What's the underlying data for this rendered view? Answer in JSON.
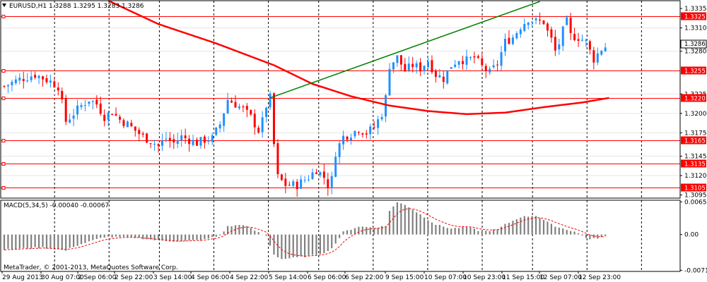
{
  "header": {
    "symbol_info": "EURUSD,H1  1.3288  1.3295  1.3283  1.3286",
    "macd_info": "MACD(5,34,5) -0.00040 -0.00067",
    "copyright": "MetaTrader, © 2001-2013, MetaQuotes Software Corp."
  },
  "colors": {
    "bull": "#1e90ff",
    "bear": "#ff0000",
    "ma": "#ff0000",
    "trendline": "#008000",
    "level": "#ff0000",
    "grid": "#000000",
    "hist": "#808080",
    "signal": "#ff0000"
  },
  "chart_data": [
    {
      "type": "candlestick",
      "title": "EURUSD,H1",
      "y_ticks": [
        "1.3335",
        "1.3310",
        "1.3280",
        "1.3225",
        "1.3200",
        "1.3175",
        "1.3145",
        "1.3120",
        "1.3095"
      ],
      "x_tick_labels": [
        "29 Aug 2013",
        "30 Aug 07:00",
        "2 Sep 06:00",
        "2 Sep 22:00",
        "3 Sep 14:00",
        "4 Sep 06:00",
        "4 Sep 22:00",
        "5 Sep 14:00",
        "6 Sep 06:00",
        "6 Sep 22:00",
        "9 Sep 15:00",
        "10 Sep 07:00",
        "10 Sep 23:00",
        "11 Sep 15:00",
        "12 Sep 07:00",
        "12 Sep 23:00"
      ],
      "ylim": [
        1.3091,
        1.3345
      ],
      "current_price": "1.3286",
      "horizontal_levels": [
        {
          "label": "1.3325",
          "value": 1.3325
        },
        {
          "label": "1.3255",
          "value": 1.3255
        },
        {
          "label": "1.3220",
          "value": 1.322
        },
        {
          "label": "1.3165",
          "value": 1.3165
        },
        {
          "label": "1.3135",
          "value": 1.3135
        },
        {
          "label": "1.3105",
          "value": 1.3105
        }
      ],
      "trendline": {
        "from": {
          "bar": 69,
          "value": 1.322
        },
        "to": {
          "bar": 139,
          "value": 1.3344
        }
      },
      "close_path": [
        [
          0,
          1.3235
        ],
        [
          4,
          1.3244
        ],
        [
          8,
          1.325
        ],
        [
          12,
          1.3241
        ],
        [
          14,
          1.3235
        ],
        [
          16,
          1.319
        ],
        [
          18,
          1.32
        ],
        [
          20,
          1.321
        ],
        [
          22,
          1.3218
        ],
        [
          24,
          1.3212
        ],
        [
          26,
          1.3196
        ],
        [
          28,
          1.3202
        ],
        [
          30,
          1.3192
        ],
        [
          32,
          1.3186
        ],
        [
          34,
          1.3178
        ],
        [
          36,
          1.317
        ],
        [
          38,
          1.3165
        ],
        [
          40,
          1.3158
        ],
        [
          42,
          1.3168
        ],
        [
          44,
          1.3162
        ],
        [
          46,
          1.317
        ],
        [
          48,
          1.3166
        ],
        [
          50,
          1.3162
        ],
        [
          52,
          1.3166
        ],
        [
          54,
          1.3168
        ],
        [
          56,
          1.3186
        ],
        [
          58,
          1.3218
        ],
        [
          60,
          1.3212
        ],
        [
          62,
          1.3205
        ],
        [
          64,
          1.3195
        ],
        [
          66,
          1.3178
        ],
        [
          67,
          1.319
        ],
        [
          68,
          1.321
        ],
        [
          69,
          1.322
        ],
        [
          70,
          1.316
        ],
        [
          71,
          1.3118
        ],
        [
          73,
          1.3108
        ],
        [
          76,
          1.3108
        ],
        [
          79,
          1.3118
        ],
        [
          81,
          1.3128
        ],
        [
          83,
          1.3118
        ],
        [
          84,
          1.3108
        ],
        [
          85,
          1.3115
        ],
        [
          86,
          1.315
        ],
        [
          88,
          1.317
        ],
        [
          90,
          1.3174
        ],
        [
          92,
          1.318
        ],
        [
          94,
          1.3175
        ],
        [
          96,
          1.3182
        ],
        [
          98,
          1.32
        ],
        [
          99,
          1.322
        ],
        [
          100,
          1.3262
        ],
        [
          102,
          1.3272
        ],
        [
          104,
          1.3255
        ],
        [
          106,
          1.3262
        ],
        [
          108,
          1.3258
        ],
        [
          110,
          1.3268
        ],
        [
          112,
          1.325
        ],
        [
          114,
          1.3245
        ],
        [
          116,
          1.3262
        ],
        [
          118,
          1.327
        ],
        [
          120,
          1.3268
        ],
        [
          122,
          1.3272
        ],
        [
          124,
          1.326
        ],
        [
          126,
          1.3252
        ],
        [
          128,
          1.3264
        ],
        [
          130,
          1.3292
        ],
        [
          132,
          1.3298
        ],
        [
          134,
          1.3312
        ],
        [
          136,
          1.3322
        ],
        [
          138,
          1.3318
        ],
        [
          140,
          1.3318
        ],
        [
          141,
          1.3305
        ],
        [
          142,
          1.3295
        ],
        [
          143,
          1.328
        ],
        [
          144,
          1.329
        ],
        [
          145,
          1.3306
        ],
        [
          146,
          1.3318
        ],
        [
          147,
          1.33
        ],
        [
          149,
          1.3298
        ],
        [
          151,
          1.3292
        ],
        [
          152,
          1.328
        ],
        [
          153,
          1.327
        ],
        [
          155,
          1.3283
        ],
        [
          156,
          1.3286
        ]
      ],
      "ma_path": [
        [
          27,
          1.3345
        ],
        [
          40,
          1.3315
        ],
        [
          55,
          1.329
        ],
        [
          70,
          1.3262
        ],
        [
          80,
          1.3238
        ],
        [
          90,
          1.3222
        ],
        [
          100,
          1.321
        ],
        [
          110,
          1.3203
        ],
        [
          120,
          1.3199
        ],
        [
          130,
          1.3201
        ],
        [
          140,
          1.3208
        ],
        [
          150,
          1.3214
        ],
        [
          157,
          1.322
        ]
      ]
    },
    {
      "type": "bar",
      "title": "MACD(5,34,5)",
      "y_ticks": [
        "0.00654",
        "0.00",
        "-0.00715"
      ],
      "ylim": [
        -0.00738,
        0.00686
      ],
      "hist_path": [
        [
          0,
          -0.003
        ],
        [
          10,
          -0.0026
        ],
        [
          16,
          -0.0032
        ],
        [
          18,
          -0.0024
        ],
        [
          26,
          -0.0005
        ],
        [
          34,
          -0.0006
        ],
        [
          40,
          -0.0012
        ],
        [
          46,
          -0.0014
        ],
        [
          52,
          -0.001
        ],
        [
          56,
          -0.0002
        ],
        [
          58,
          0.0016
        ],
        [
          62,
          0.002
        ],
        [
          66,
          0.0004
        ],
        [
          68,
          -0.0003
        ],
        [
          70,
          -0.004
        ],
        [
          72,
          -0.0049
        ],
        [
          76,
          -0.0046
        ],
        [
          80,
          -0.0042
        ],
        [
          84,
          -0.0034
        ],
        [
          86,
          -0.0018
        ],
        [
          88,
          0.0005
        ],
        [
          92,
          0.0016
        ],
        [
          96,
          0.0014
        ],
        [
          99,
          0.0017
        ],
        [
          100,
          0.0048
        ],
        [
          102,
          0.0064
        ],
        [
          104,
          0.006
        ],
        [
          108,
          0.004
        ],
        [
          112,
          0.002
        ],
        [
          116,
          0.0012
        ],
        [
          120,
          0.0015
        ],
        [
          124,
          0.0006
        ],
        [
          128,
          0.001
        ],
        [
          130,
          0.002
        ],
        [
          134,
          0.0035
        ],
        [
          138,
          0.0038
        ],
        [
          142,
          0.002
        ],
        [
          144,
          0.0014
        ],
        [
          146,
          0.001
        ],
        [
          148,
          0.0006
        ],
        [
          152,
          -0.001
        ],
        [
          156,
          -0.0004
        ]
      ]
    }
  ]
}
